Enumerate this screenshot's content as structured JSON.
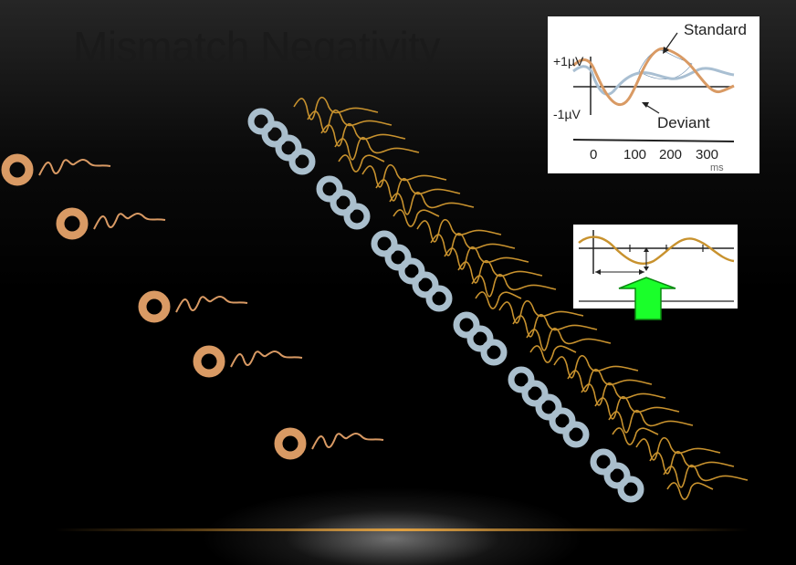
{
  "slide": {
    "title": "Mismatch Negativity"
  },
  "erp_panel": {
    "plus_label": "+1µV",
    "minus_label": "-1µV",
    "standard_label": "Standard",
    "deviant_label": "Deviant",
    "ticks": [
      "0",
      "100",
      "200",
      "300"
    ],
    "unit": "ms"
  },
  "colors": {
    "deviant": "#d99a64",
    "standard": "#aabfcd",
    "waveform": "#c8922e",
    "arrow": "#1aff2a",
    "background": "#000000",
    "glow_line": "#c98a2c"
  }
}
